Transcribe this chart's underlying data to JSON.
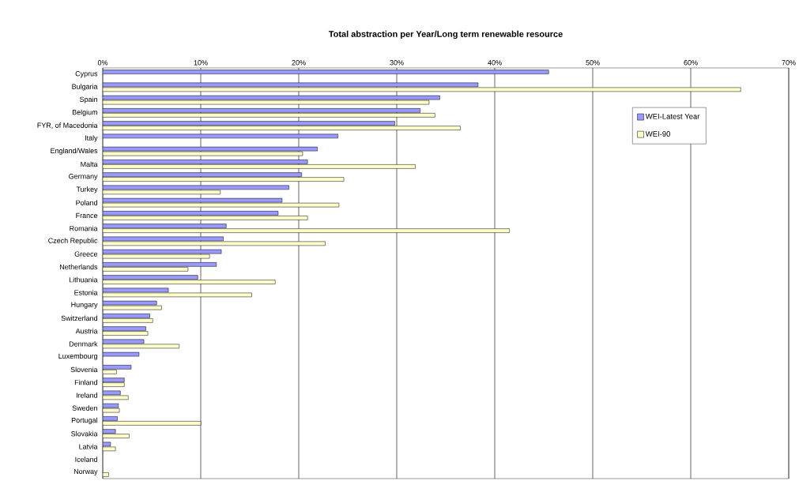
{
  "chart_data": {
    "type": "bar",
    "orientation": "horizontal",
    "title": "Total abstraction per Year/Long term renewable resource",
    "categories": [
      "Cyprus",
      "Bulgaria",
      "Spain",
      "Belgium",
      "FYR, of Macedonia",
      "Italy",
      "England/Wales",
      "Malta",
      "Germany",
      "Turkey",
      "Poland",
      "France",
      "Romania",
      "Czech Republic",
      "Greece",
      "Netherlands",
      "Lithuania",
      "Estonia",
      "Hungary",
      "Switzerland",
      "Austria",
      "Denmark",
      "Luxembourg",
      "Slovenia",
      "Finland",
      "Ireland",
      "Sweden",
      "Portugal",
      "Slovakia",
      "Latvia",
      "Iceland",
      "Norway"
    ],
    "series": [
      {
        "name": "WEI-Latest Year",
        "color": "#9999ff",
        "values": [
          45.5,
          38.3,
          34.4,
          32.4,
          29.8,
          24.0,
          21.9,
          20.9,
          20.3,
          19.0,
          18.3,
          17.9,
          12.6,
          12.3,
          12.1,
          11.6,
          9.7,
          6.7,
          5.5,
          4.8,
          4.4,
          4.2,
          3.7,
          2.9,
          2.2,
          1.8,
          1.6,
          1.5,
          1.3,
          0.8,
          null,
          null
        ]
      },
      {
        "name": "WEI-90",
        "color": "#ffffcc",
        "values": [
          null,
          65.1,
          33.3,
          33.9,
          36.5,
          null,
          20.4,
          31.9,
          24.6,
          12.0,
          24.1,
          20.9,
          41.5,
          22.7,
          10.9,
          8.7,
          17.6,
          15.2,
          6.0,
          5.1,
          4.6,
          7.8,
          null,
          1.4,
          2.2,
          2.6,
          1.7,
          10.0,
          2.7,
          1.3,
          null,
          0.6
        ]
      }
    ],
    "xlim": [
      0,
      70
    ],
    "xticks": [
      {
        "value": 0,
        "label": "0%"
      },
      {
        "value": 10,
        "label": "10%"
      },
      {
        "value": 20,
        "label": "20%"
      },
      {
        "value": 30,
        "label": "30%"
      },
      {
        "value": 40,
        "label": "40%"
      },
      {
        "value": 50,
        "label": "50%"
      },
      {
        "value": 60,
        "label": "60%"
      },
      {
        "value": 70,
        "label": "70%"
      }
    ],
    "grid": "x",
    "legend": "top right"
  }
}
